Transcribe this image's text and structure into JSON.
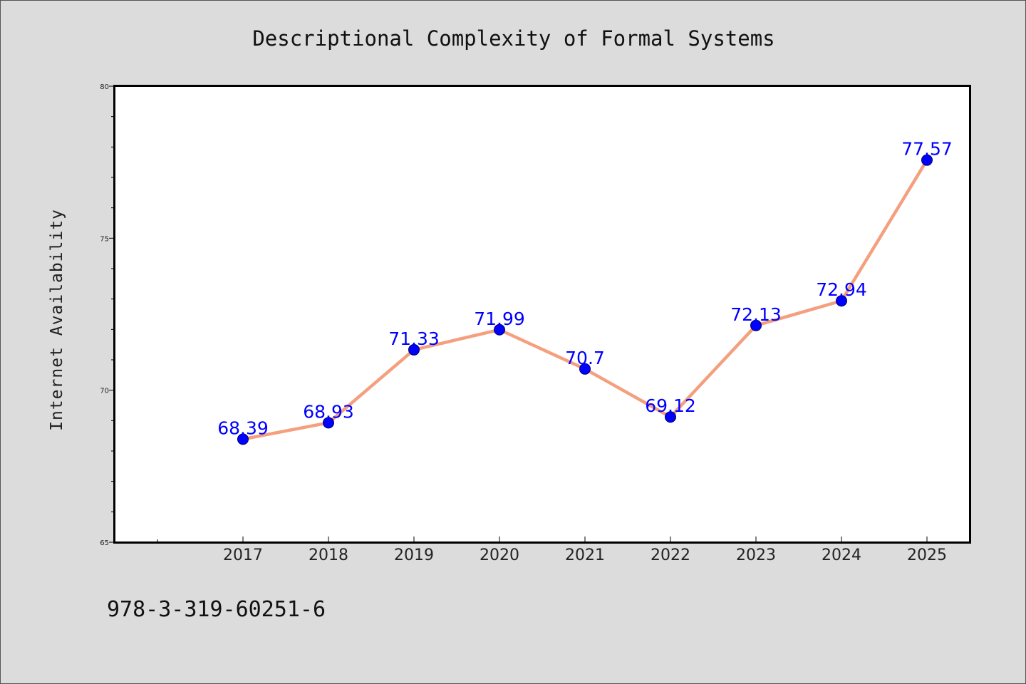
{
  "chart_data": {
    "type": "line",
    "title": "Descriptional Complexity of Formal Systems",
    "xlabel": "",
    "ylabel": "Internet Availability",
    "categories": [
      "2017",
      "2018",
      "2019",
      "2020",
      "2021",
      "2022",
      "2023",
      "2024",
      "2025"
    ],
    "series": [
      {
        "values": [
          68.39,
          68.93,
          71.33,
          71.99,
          70.7,
          69.12,
          72.13,
          72.94,
          77.57
        ],
        "labels": [
          "68.39",
          "68.93",
          "71.33",
          "71.99",
          "70.7",
          "69.12",
          "72.13",
          "72.94",
          "77.57"
        ]
      }
    ],
    "ylim": [
      65,
      80
    ],
    "yticks": [
      65,
      70,
      75,
      80
    ],
    "ytick_labels": [
      "65",
      "70",
      "75",
      "80"
    ],
    "ytick_minor_step": 1,
    "x_minor_before_first": true,
    "grid": false,
    "legend": "none",
    "colors": {
      "line": "#f4a07f",
      "marker": "#0000ff",
      "data_label": "#0000ff",
      "plot_background": "#ffffff",
      "figure_background": "#dcdcdc"
    }
  },
  "footnote": "978-3-319-60251-6"
}
